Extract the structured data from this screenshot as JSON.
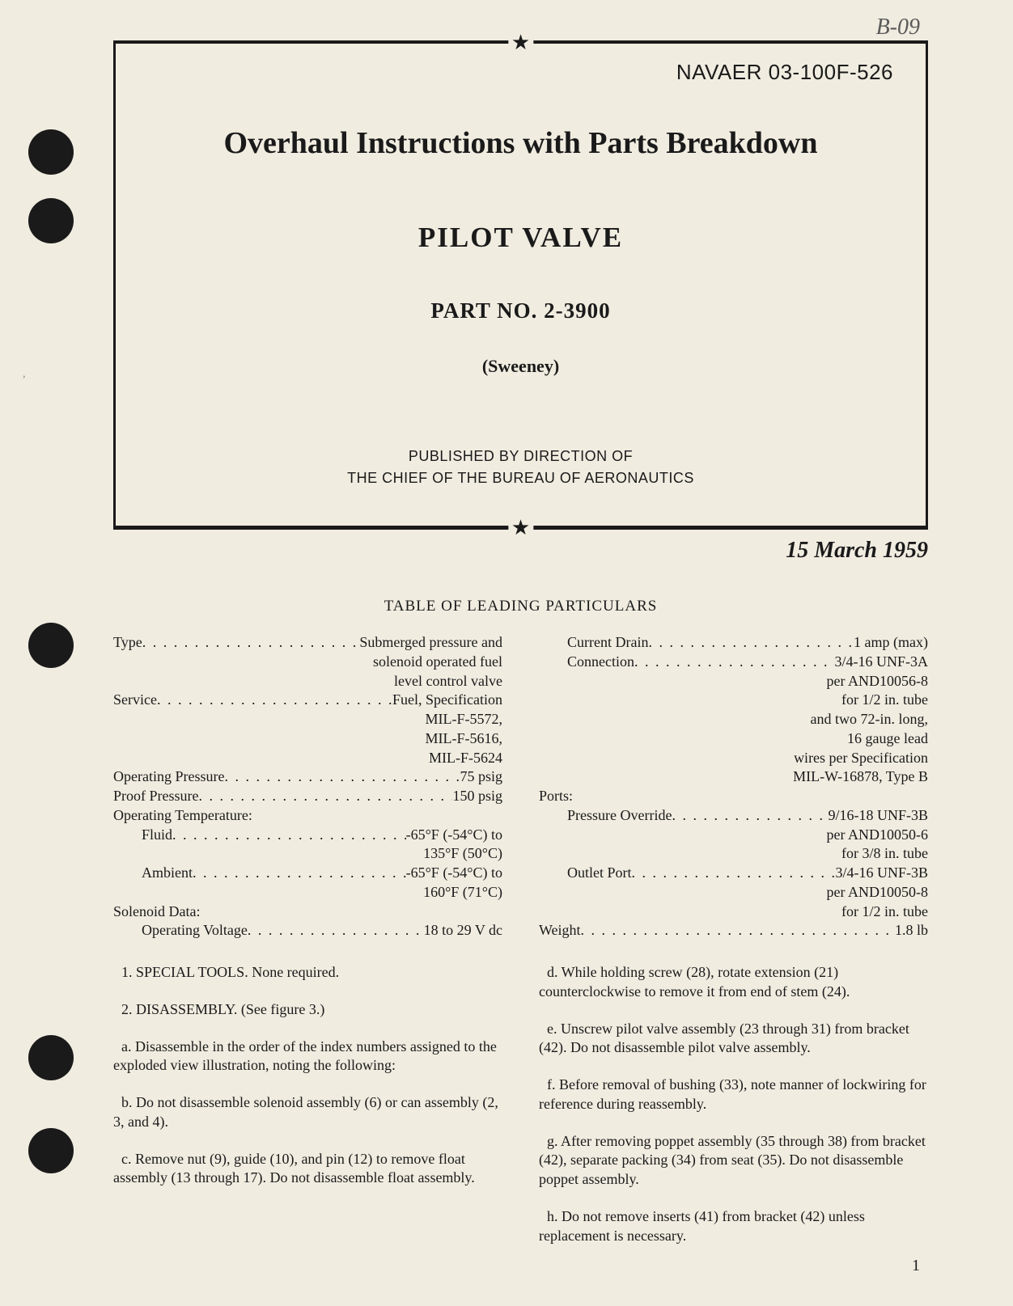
{
  "handwritten_note": "B-09",
  "doc_number": "NAVAER 03-100F-526",
  "title": "Overhaul Instructions with Parts Breakdown",
  "subtitle": "PILOT VALVE",
  "part_label": "PART NO. 2-3900",
  "manufacturer": "(Sweeney)",
  "published_line1": "PUBLISHED BY DIRECTION OF",
  "published_line2": "THE CHIEF OF THE BUREAU OF AERONAUTICS",
  "date": "15 March 1959",
  "table_title": "TABLE OF LEADING PARTICULARS",
  "left_specs": [
    {
      "label": "Type",
      "value": "Submerged pressure and",
      "cont": [
        "solenoid operated fuel",
        "level control valve"
      ]
    },
    {
      "label": "Service",
      "value": "Fuel, Specification",
      "cont": [
        "MIL-F-5572,",
        "MIL-F-5616,",
        "MIL-F-5624"
      ]
    },
    {
      "label": "Operating Pressure",
      "value": "75 psig"
    },
    {
      "label": "Proof Pressure",
      "value": "150 psig"
    },
    {
      "label": "Operating Temperature:",
      "header": true
    },
    {
      "label": "Fluid",
      "value": "-65°F (-54°C) to",
      "indent": 1,
      "cont": [
        "135°F (50°C)"
      ]
    },
    {
      "label": "Ambient",
      "value": "-65°F (-54°C) to",
      "indent": 1,
      "cont": [
        "160°F (71°C)"
      ]
    },
    {
      "label": "Solenoid Data:",
      "header": true
    },
    {
      "label": "Operating Voltage",
      "value": "18 to 29 V dc",
      "indent": 1
    }
  ],
  "right_specs": [
    {
      "label": "Current Drain",
      "value": "1 amp (max)",
      "indent": 1
    },
    {
      "label": "Connection",
      "value": "3/4-16 UNF-3A",
      "indent": 1,
      "cont": [
        "per AND10056-8",
        "for 1/2 in. tube",
        "and two 72-in. long,",
        "16 gauge lead",
        "wires per Specification",
        "MIL-W-16878, Type B"
      ]
    },
    {
      "label": "Ports:",
      "header": true
    },
    {
      "label": "Pressure Override",
      "value": "9/16-18 UNF-3B",
      "indent": 1,
      "cont": [
        "per AND10050-6",
        "for 3/8 in. tube"
      ]
    },
    {
      "label": "Outlet Port",
      "value": "3/4-16 UNF-3B",
      "indent": 1,
      "cont": [
        "per AND10050-8",
        "for 1/2 in. tube"
      ]
    },
    {
      "label": "Weight",
      "value": "1.8 lb"
    }
  ],
  "left_body": [
    "1. SPECIAL TOOLS. None required.",
    "2. DISASSEMBLY. (See figure 3.)",
    "a. Disassemble in the order of the index numbers assigned to the exploded view illustration, noting the following:",
    "b. Do not disassemble solenoid assembly (6) or can assembly (2, 3, and 4).",
    "c. Remove nut (9), guide (10), and pin (12) to remove float assembly (13 through 17). Do not disassemble float assembly."
  ],
  "right_body": [
    "d. While holding screw (28), rotate extension (21) counterclockwise to remove it from end of stem (24).",
    "e. Unscrew pilot valve assembly (23 through 31) from bracket (42). Do not disassemble pilot valve assembly.",
    "f. Before removal of bushing (33), note manner of lockwiring for reference during reassembly.",
    "g. After removing poppet assembly (35 through 38) from bracket (42), separate packing (34) from seat (35). Do not disassemble poppet assembly.",
    "h. Do not remove inserts (41) from bracket (42) unless replacement is necessary."
  ],
  "page_number": "1",
  "punch_holes": [
    160,
    245,
    770,
    1280,
    1395
  ],
  "colors": {
    "bg": "#f0ece0",
    "ink": "#1a1a1a"
  }
}
